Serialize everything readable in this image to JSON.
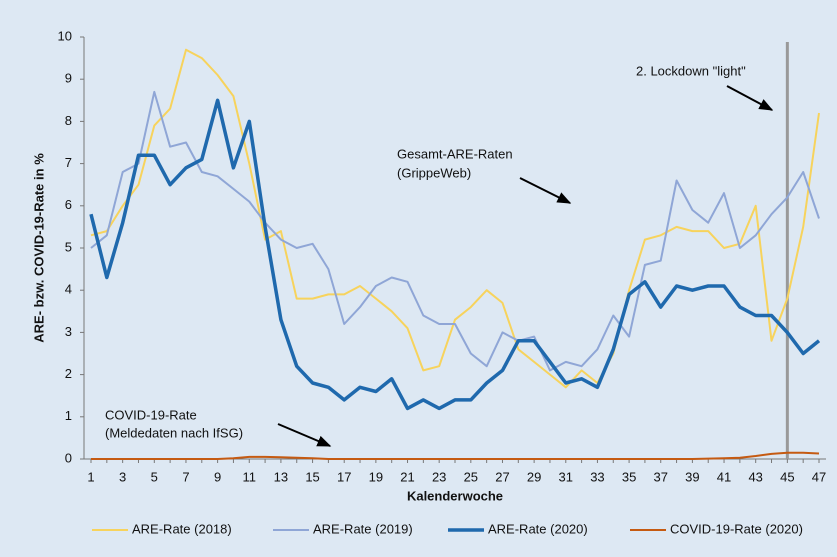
{
  "chart_data": {
    "type": "line",
    "y_label": "ARE- bzw. COVID-19-Rate in %",
    "x_label": "Kalenderwoche",
    "categories": [
      1,
      null,
      3,
      null,
      5,
      null,
      7,
      null,
      9,
      null,
      11,
      null,
      13,
      null,
      15,
      null,
      17,
      null,
      19,
      null,
      21,
      null,
      23,
      null,
      25,
      null,
      27,
      null,
      29,
      null,
      31,
      null,
      33,
      null,
      35,
      null,
      37,
      null,
      39,
      null,
      41,
      null,
      43,
      null,
      45,
      null,
      47
    ],
    "ylim": [
      0,
      10
    ],
    "yticks": [
      0,
      1,
      2,
      3,
      4,
      5,
      6,
      7,
      8,
      9,
      10
    ],
    "series": [
      {
        "name": "ARE-Rate (2018)",
        "color": "#f7d35c",
        "width": 2,
        "values": [
          5.3,
          5.4,
          6.0,
          6.5,
          7.9,
          8.3,
          9.7,
          9.5,
          9.1,
          8.6,
          7.0,
          5.2,
          5.4,
          3.8,
          3.8,
          3.9,
          3.9,
          4.1,
          3.8,
          3.5,
          3.1,
          2.1,
          2.2,
          3.3,
          3.6,
          4.0,
          3.7,
          2.6,
          2.3,
          2.0,
          1.7,
          2.1,
          1.8,
          2.5,
          4.0,
          5.2,
          5.3,
          5.5,
          5.4,
          5.4,
          5.0,
          5.1,
          6.0,
          2.8,
          3.8,
          5.5,
          8.2
        ]
      },
      {
        "name": "ARE-Rate (2019)",
        "color": "#8fa6d6",
        "width": 2,
        "values": [
          5.0,
          5.3,
          6.8,
          7.0,
          8.7,
          7.4,
          7.5,
          6.8,
          6.7,
          6.4,
          6.1,
          5.6,
          5.2,
          5.0,
          5.1,
          4.5,
          3.2,
          3.6,
          4.1,
          4.3,
          4.2,
          3.4,
          3.2,
          3.2,
          2.5,
          2.2,
          3.0,
          2.8,
          2.9,
          2.1,
          2.3,
          2.2,
          2.6,
          3.4,
          2.9,
          4.6,
          4.7,
          6.6,
          5.9,
          5.6,
          6.3,
          5.0,
          5.3,
          5.8,
          6.2,
          6.8,
          5.7
        ]
      },
      {
        "name": "ARE-Rate (2020)",
        "color": "#1f69ad",
        "width": 3.5,
        "values": [
          5.8,
          4.3,
          5.6,
          7.2,
          7.2,
          6.5,
          6.9,
          7.1,
          8.5,
          6.9,
          8.0,
          5.5,
          3.3,
          2.2,
          1.8,
          1.7,
          1.4,
          1.7,
          1.6,
          1.9,
          1.2,
          1.4,
          1.2,
          1.4,
          1.4,
          1.8,
          2.1,
          2.8,
          2.8,
          2.3,
          1.8,
          1.9,
          1.7,
          2.6,
          3.9,
          4.2,
          3.6,
          4.1,
          4.0,
          4.1,
          4.1,
          3.6,
          3.4,
          3.4,
          3.0,
          2.5,
          2.8
        ]
      },
      {
        "name": "COVID-19-Rate (2020)",
        "color": "#c55a11",
        "width": 2,
        "values": [
          0,
          0,
          0,
          0,
          0,
          0,
          0,
          0,
          0,
          0.02,
          0.05,
          0.05,
          0.04,
          0.03,
          0.02,
          0,
          0,
          0,
          0,
          0,
          0,
          0,
          0,
          0,
          0,
          0,
          0,
          0,
          0,
          0,
          0,
          0,
          0,
          0,
          0,
          0,
          0,
          0,
          0,
          0.01,
          0.02,
          0.03,
          0.07,
          0.12,
          0.15,
          0.15,
          0.13
        ]
      }
    ],
    "vline": {
      "x": 45,
      "color": "#999999"
    },
    "annotations": [
      {
        "lines": [
          "2. Lockdown \"light\""
        ]
      },
      {
        "lines": [
          "Gesamt-ARE-Raten",
          "(GrippeWeb)"
        ]
      },
      {
        "lines": [
          "COVID-19-Rate",
          "(Meldedaten nach IfSG)"
        ]
      }
    ],
    "legend": "bottom"
  }
}
